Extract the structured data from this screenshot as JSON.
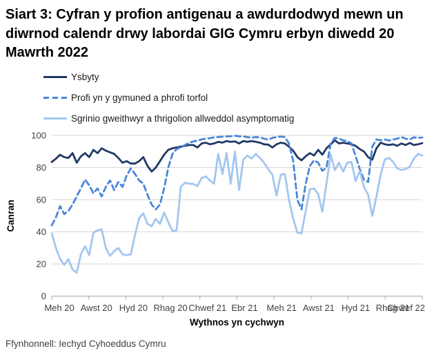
{
  "title": "Siart 3: Cyfran y profion antigenau a awdurdodwyd mewn un diwrnod calendr drwy labordai GIG Cymru erbyn diwedd 20 Mawrth 2022",
  "footer": "Ffynhonnell: Iechyd Cyhoeddus Cymru",
  "colors": {
    "hospital_line": "#1f3864",
    "community_line": "#4a86d9",
    "screening_line": "#a2c7ef",
    "gridline": "#d6d6d6",
    "axis": "#a6a6a6",
    "tick_text": "#404040"
  },
  "chart_data": {
    "type": "line",
    "title": "Siart 3: Cyfran y profion antigenau a awdurdodwyd mewn un diwrnod calendr drwy labordai GIG Cymru erbyn diwedd 20 Mawrth 2022",
    "xlabel": "Wythnos yn cychwyn",
    "ylabel": "Canran",
    "ylim": [
      0,
      100
    ],
    "yticks": [
      0,
      20,
      40,
      60,
      80,
      100
    ],
    "x_tick_labels": [
      "Meh 20",
      "Awst 20",
      "Hyd 20",
      "Rhag 20",
      "Chwef 21",
      "Ebr 21",
      "Meh 21",
      "Awst 21",
      "Hyd 21",
      "Rhag 21",
      "Chwef 22"
    ],
    "grid": "horizontal",
    "legend_position": "top-left",
    "x_unit": "week",
    "series": [
      {
        "name": "Ysbyty",
        "key": "ysbyty",
        "color": "#1f3864",
        "dash": "solid",
        "values": [
          83.5,
          85.5,
          88,
          86.5,
          86,
          89,
          83,
          87,
          89,
          86.5,
          91,
          89,
          92,
          90.5,
          89.5,
          88.5,
          86,
          83,
          84,
          82.5,
          82.5,
          84,
          86.5,
          81,
          77.5,
          80,
          84,
          88,
          91,
          92,
          92.5,
          93,
          93.5,
          94,
          94,
          92.5,
          95,
          95.5,
          94.5,
          95,
          96,
          95.5,
          96.5,
          96,
          96.3,
          95,
          96.5,
          96,
          96.5,
          96,
          95.5,
          94.5,
          94.3,
          92.5,
          94.5,
          95.5,
          95,
          93,
          90.5,
          86.5,
          84.5,
          87,
          89,
          87.5,
          91,
          88,
          92,
          94.5,
          97,
          95,
          95.5,
          95,
          94.5,
          93.5,
          91.5,
          90,
          86.5,
          85,
          92,
          95.5,
          94.5,
          94,
          94.5,
          93.5,
          95,
          94,
          95.3,
          94,
          94.5,
          95.2
        ]
      },
      {
        "name": "Profi yn y gymuned a phrofi torfol",
        "key": "profi-gymuned",
        "color": "#4a86d9",
        "dash": "dashed",
        "values": [
          44,
          49,
          56,
          51,
          53,
          57,
          62,
          67,
          72.5,
          69,
          64,
          67,
          62,
          68,
          72,
          66,
          71,
          68,
          75,
          79.5,
          76,
          72,
          70,
          63,
          57,
          54,
          57,
          67,
          80,
          88.5,
          91.5,
          92.7,
          94,
          95.5,
          96.2,
          96.8,
          97.5,
          98,
          98.3,
          98.8,
          99,
          99.2,
          99.4,
          99.5,
          99.8,
          99.5,
          99.3,
          99,
          98.5,
          99,
          98.8,
          98,
          97.4,
          98.5,
          99,
          99.3,
          99,
          95,
          84,
          60,
          54,
          70,
          81,
          84.5,
          83,
          78,
          80,
          95,
          98.5,
          98,
          97,
          96.5,
          95,
          87,
          79,
          72.5,
          71,
          93,
          97.5,
          97,
          97.5,
          96.8,
          97.5,
          98,
          99,
          98,
          97.5,
          98.8,
          98.5,
          98.7
        ]
      },
      {
        "name": "Sgrinio gweithwyr a thrigolion allweddol asymptomatig",
        "key": "sgrinio",
        "color": "#a2c7ef",
        "dash": "solid",
        "values": [
          39,
          30,
          23,
          19.5,
          23,
          16.5,
          14.5,
          26,
          31,
          25.5,
          39.5,
          41,
          41.5,
          30,
          25,
          28,
          30,
          26,
          25.5,
          26,
          38,
          48.5,
          51.5,
          45,
          43.5,
          48,
          45,
          52,
          46,
          40.5,
          41,
          68,
          70.5,
          70,
          69.8,
          68.5,
          73.5,
          74.5,
          72,
          70,
          88.5,
          76,
          89,
          70,
          90,
          66,
          85,
          87.5,
          85.5,
          88.5,
          86,
          83,
          79,
          75.5,
          62.5,
          75.5,
          76,
          60,
          48,
          39.5,
          39,
          53,
          66.5,
          67,
          63.5,
          52.5,
          70,
          88,
          78.5,
          83,
          77.5,
          83,
          83.5,
          71.5,
          78,
          68,
          63,
          50,
          62,
          75.5,
          85,
          86,
          83.5,
          79.5,
          78.5,
          79,
          80.5,
          85.5,
          88.5,
          87.5
        ]
      }
    ]
  }
}
